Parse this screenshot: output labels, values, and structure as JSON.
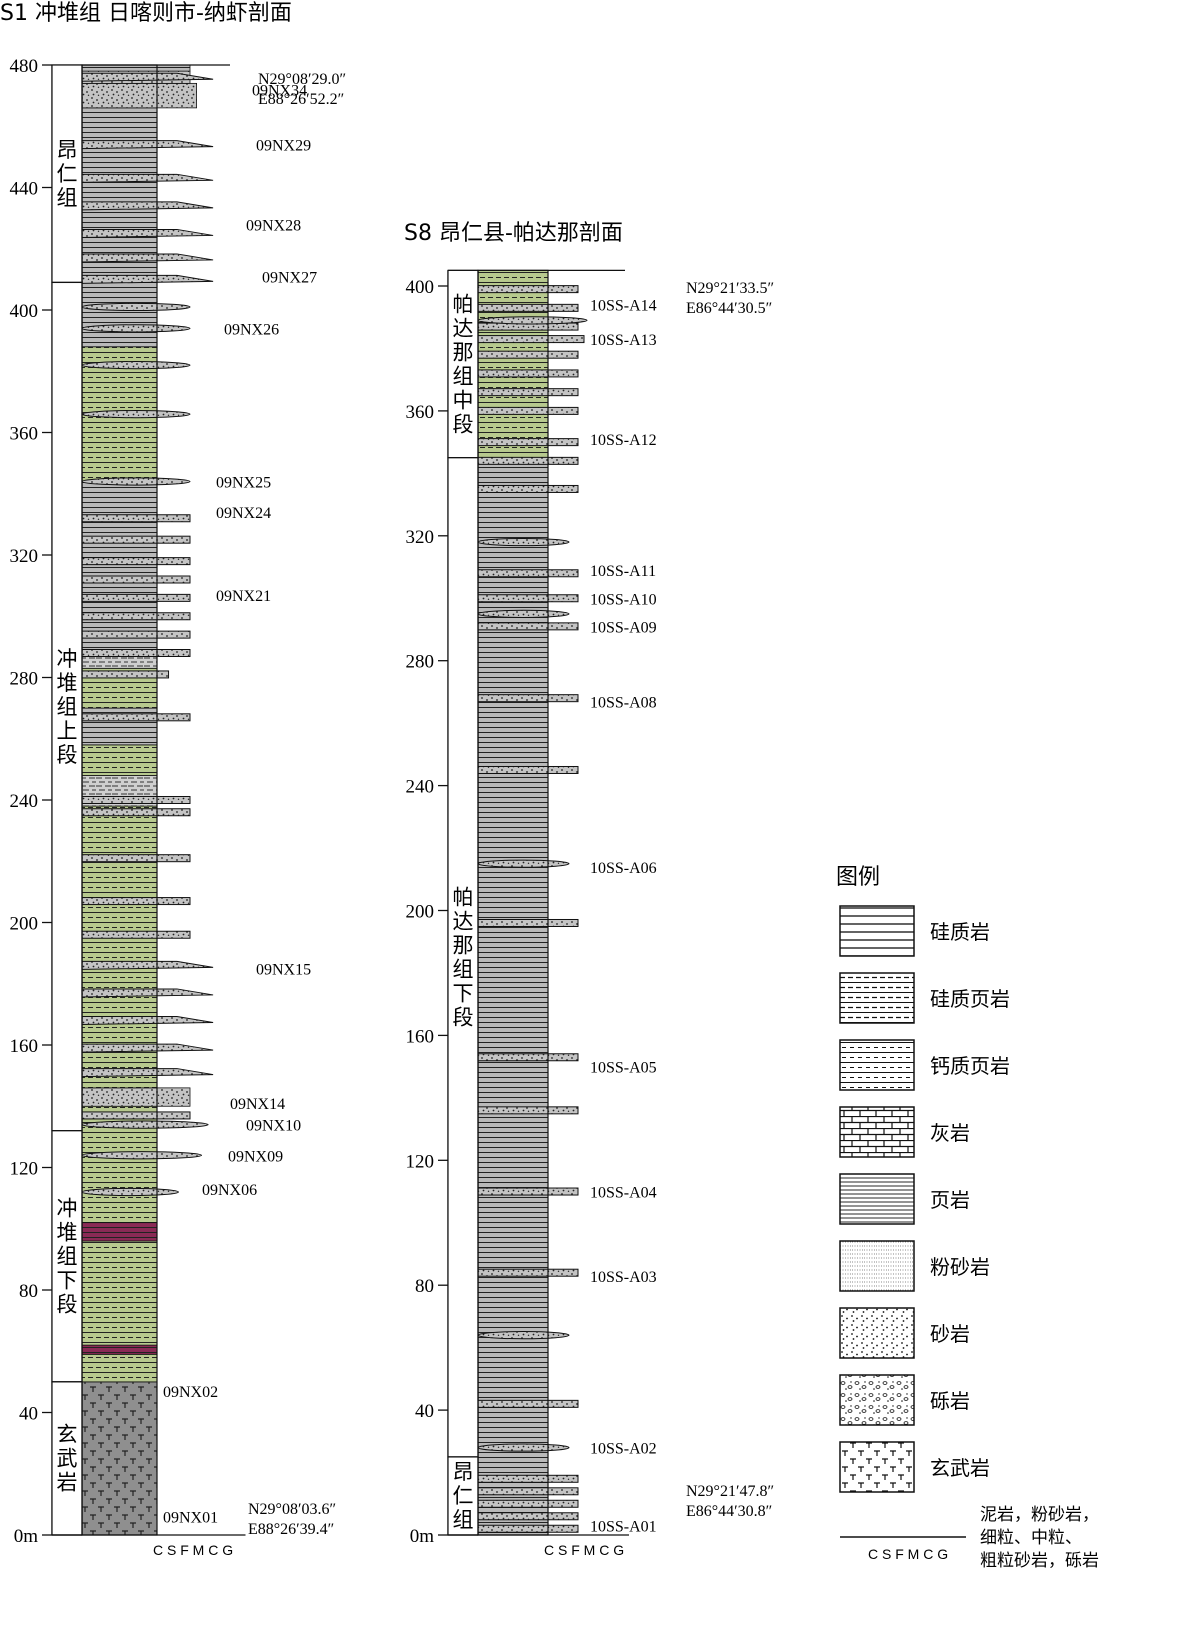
{
  "colors": {
    "shale": "#b9b9b9",
    "siliceous_shale": "#b7c98e",
    "calcareous_shale": "#cfcfcf",
    "sandstone": "#c4c4c4",
    "basalt": "#8f8f8f",
    "red_band": "#8a2a55",
    "line": "#111111"
  },
  "columns": [
    {
      "id": "S1",
      "title": "S1 冲堆组 日喀则市-纳虾剖面",
      "ticks": [
        "0m",
        "40",
        "80",
        "120",
        "160",
        "200",
        "240",
        "280",
        "320",
        "360",
        "400",
        "440",
        "480"
      ],
      "tick_values": [
        0,
        40,
        80,
        120,
        160,
        200,
        240,
        280,
        320,
        360,
        400,
        440,
        480
      ],
      "top_value": 480,
      "grain_label": "C S F M C G",
      "formations": [
        {
          "label": "昂仁组",
          "from": 409,
          "to": 480
        },
        {
          "label": "冲堆组上段",
          "from": 132,
          "to": 409
        },
        {
          "label": "冲堆组下段",
          "from": 50,
          "to": 132
        },
        {
          "label": "玄武岩",
          "from": 0,
          "to": 50
        }
      ],
      "units": [
        {
          "from": 0,
          "to": 50,
          "lith": "basalt",
          "grain": 0
        },
        {
          "from": 50,
          "to": 59,
          "lith": "siliceous_shale",
          "grain": 0
        },
        {
          "from": 59,
          "to": 62,
          "lith": "red_band",
          "grain": 0
        },
        {
          "from": 62,
          "to": 96,
          "lith": "siliceous_shale",
          "grain": 0
        },
        {
          "from": 96,
          "to": 102,
          "lith": "red_band",
          "grain": 0
        },
        {
          "from": 102,
          "to": 140,
          "lith": "siliceous_shale",
          "grain": 0
        },
        {
          "from": 140,
          "to": 146,
          "lith": "sandstone",
          "grain": 2
        },
        {
          "from": 146,
          "to": 238,
          "lith": "siliceous_shale",
          "grain": 0
        },
        {
          "from": 238,
          "to": 248,
          "lith": "calcareous_shale",
          "grain": 0
        },
        {
          "from": 248,
          "to": 258,
          "lith": "siliceous_shale",
          "grain": 0
        },
        {
          "from": 258,
          "to": 270,
          "lith": "shale",
          "grain": 0
        },
        {
          "from": 270,
          "to": 283,
          "lith": "siliceous_shale",
          "grain": 0
        },
        {
          "from": 283,
          "to": 288,
          "lith": "calcareous_shale",
          "grain": 0
        },
        {
          "from": 288,
          "to": 344,
          "lith": "shale",
          "grain": 0
        },
        {
          "from": 344,
          "to": 388,
          "lith": "siliceous_shale",
          "grain": 0
        },
        {
          "from": 388,
          "to": 466,
          "lith": "shale",
          "grain": 0
        },
        {
          "from": 466,
          "to": 474,
          "lith": "sandstone",
          "grain": 2.4
        },
        {
          "from": 474,
          "to": 478,
          "lith": "sandstone",
          "grain": 2
        },
        {
          "from": 478,
          "to": 480,
          "lith": "shale",
          "grain": 2
        }
      ],
      "beds": [
        {
          "at": 137,
          "type": "bar",
          "grain": 2
        },
        {
          "at": 134,
          "type": "lens",
          "grain": 3.1
        },
        {
          "at": 124,
          "type": "lens",
          "grain": 2.7
        },
        {
          "at": 112,
          "type": "lens",
          "grain": 1.3
        },
        {
          "at": 151,
          "type": "wedge",
          "grain": 3.4
        },
        {
          "at": 159,
          "type": "wedge",
          "grain": 3.4
        },
        {
          "at": 168,
          "type": "wedge",
          "grain": 3.4
        },
        {
          "at": 177,
          "type": "wedge",
          "grain": 3.4
        },
        {
          "at": 186,
          "type": "wedge",
          "grain": 3.4
        },
        {
          "at": 196,
          "type": "bar",
          "grain": 2
        },
        {
          "at": 207,
          "type": "bar",
          "grain": 2
        },
        {
          "at": 221,
          "type": "bar",
          "grain": 2
        },
        {
          "at": 236,
          "type": "bar",
          "grain": 2
        },
        {
          "at": 240,
          "type": "bar",
          "grain": 2
        },
        {
          "at": 267,
          "type": "bar",
          "grain": 2
        },
        {
          "at": 281,
          "type": "bar",
          "grain": 0.7
        },
        {
          "at": 288,
          "type": "bar",
          "grain": 2
        },
        {
          "at": 294,
          "type": "bar",
          "grain": 2
        },
        {
          "at": 300,
          "type": "bar",
          "grain": 2
        },
        {
          "at": 306,
          "type": "bar",
          "grain": 2
        },
        {
          "at": 312,
          "type": "bar",
          "grain": 2
        },
        {
          "at": 318,
          "type": "bar",
          "grain": 2
        },
        {
          "at": 325,
          "type": "bar",
          "grain": 2
        },
        {
          "at": 332,
          "type": "bar",
          "grain": 2
        },
        {
          "at": 344,
          "type": "lens",
          "grain": 2
        },
        {
          "at": 366,
          "type": "lens",
          "grain": 2
        },
        {
          "at": 382,
          "type": "lens",
          "grain": 2
        },
        {
          "at": 394,
          "type": "lens",
          "grain": 2
        },
        {
          "at": 401,
          "type": "lens",
          "grain": 2
        },
        {
          "at": 410,
          "type": "wedge",
          "grain": 3.4
        },
        {
          "at": 417,
          "type": "wedge",
          "grain": 3.4
        },
        {
          "at": 425,
          "type": "wedge",
          "grain": 3.4
        },
        {
          "at": 434,
          "type": "wedge",
          "grain": 3.4
        },
        {
          "at": 443,
          "type": "wedge",
          "grain": 3.4
        },
        {
          "at": 454,
          "type": "wedge",
          "grain": 3.4
        },
        {
          "at": 476,
          "type": "wedge",
          "grain": 3.4
        }
      ],
      "samples": [
        {
          "name": "09NX34",
          "at": 472
        },
        {
          "name": "09NX29",
          "at": 454
        },
        {
          "name": "09NX28",
          "at": 428
        },
        {
          "name": "09NX27",
          "at": 411
        },
        {
          "name": "09NX26",
          "at": 394
        },
        {
          "name": "09NX25",
          "at": 344
        },
        {
          "name": "09NX24",
          "at": 334
        },
        {
          "name": "09NX21",
          "at": 307
        },
        {
          "name": "09NX15",
          "at": 185
        },
        {
          "name": "09NX14",
          "at": 141
        },
        {
          "name": "09NX10",
          "at": 134
        },
        {
          "name": "09NX09",
          "at": 124
        },
        {
          "name": "09NX06",
          "at": 113
        },
        {
          "name": "09NX02",
          "at": 47
        },
        {
          "name": "09NX01",
          "at": 6
        }
      ],
      "coords_top": [
        "N29°08′29.0″",
        "E88°26′52.2″"
      ],
      "coords_bottom": [
        "N29°08′03.6″",
        "E88°26′39.4″"
      ]
    },
    {
      "id": "S8",
      "title": "S8 昂仁县-帕达那剖面",
      "ticks": [
        "0m",
        "40",
        "80",
        "120",
        "160",
        "200",
        "240",
        "280",
        "320",
        "360",
        "400"
      ],
      "tick_values": [
        0,
        40,
        80,
        120,
        160,
        200,
        240,
        280,
        320,
        360,
        400
      ],
      "top_value": 405,
      "grain_label": "C S F M C G",
      "formations": [
        {
          "label": "帕达那组中段",
          "from": 345,
          "to": 405
        },
        {
          "label": "帕达那组下段",
          "from": 25,
          "to": 345
        },
        {
          "label": "昂仁组",
          "from": 0,
          "to": 25
        }
      ],
      "units": [
        {
          "from": 0,
          "to": 345,
          "lith": "shale",
          "grain": 0
        },
        {
          "from": 345,
          "to": 405,
          "lith": "siliceous_shale",
          "grain": 0
        }
      ],
      "beds": [
        {
          "at": 2,
          "type": "bar",
          "grain": 2
        },
        {
          "at": 6,
          "type": "bar",
          "grain": 2
        },
        {
          "at": 10,
          "type": "bar",
          "grain": 2
        },
        {
          "at": 14,
          "type": "bar",
          "grain": 2
        },
        {
          "at": 18,
          "type": "bar",
          "grain": 2
        },
        {
          "at": 28,
          "type": "lens",
          "grain": 1.4
        },
        {
          "at": 42,
          "type": "bar",
          "grain": 2
        },
        {
          "at": 64,
          "type": "lens",
          "grain": 1.4
        },
        {
          "at": 84,
          "type": "bar",
          "grain": 2
        },
        {
          "at": 110,
          "type": "bar",
          "grain": 2
        },
        {
          "at": 136,
          "type": "bar",
          "grain": 2
        },
        {
          "at": 153,
          "type": "bar",
          "grain": 2
        },
        {
          "at": 196,
          "type": "bar",
          "grain": 2
        },
        {
          "at": 215,
          "type": "lens",
          "grain": 1.4
        },
        {
          "at": 245,
          "type": "bar",
          "grain": 2
        },
        {
          "at": 268,
          "type": "bar",
          "grain": 2
        },
        {
          "at": 291,
          "type": "bar",
          "grain": 2
        },
        {
          "at": 295,
          "type": "lens",
          "grain": 1.4
        },
        {
          "at": 300,
          "type": "bar",
          "grain": 2
        },
        {
          "at": 308,
          "type": "bar",
          "grain": 2
        },
        {
          "at": 318,
          "type": "lens",
          "grain": 1.4
        },
        {
          "at": 335,
          "type": "bar",
          "grain": 2
        },
        {
          "at": 344,
          "type": "bar",
          "grain": 2
        },
        {
          "at": 350,
          "type": "bar",
          "grain": 2
        },
        {
          "at": 360,
          "type": "bar",
          "grain": 2
        },
        {
          "at": 366,
          "type": "bar",
          "grain": 2
        },
        {
          "at": 372,
          "type": "bar",
          "grain": 2
        },
        {
          "at": 378,
          "type": "bar",
          "grain": 2
        },
        {
          "at": 383,
          "type": "bar",
          "grain": 2.4
        },
        {
          "at": 387,
          "type": "bar",
          "grain": 2
        },
        {
          "at": 389,
          "type": "lens",
          "grain": 2.6
        },
        {
          "at": 393,
          "type": "bar",
          "grain": 2
        },
        {
          "at": 399,
          "type": "bar",
          "grain": 2
        }
      ],
      "samples": [
        {
          "name": "10SS-A14",
          "at": 394
        },
        {
          "name": "10SS-A13",
          "at": 383
        },
        {
          "name": "10SS-A12",
          "at": 351
        },
        {
          "name": "10SS-A11",
          "at": 309
        },
        {
          "name": "10SS-A10",
          "at": 300
        },
        {
          "name": "10SS-A09",
          "at": 291
        },
        {
          "name": "10SS-A08",
          "at": 267
        },
        {
          "name": "10SS-A06",
          "at": 214
        },
        {
          "name": "10SS-A05",
          "at": 150
        },
        {
          "name": "10SS-A04",
          "at": 110
        },
        {
          "name": "10SS-A03",
          "at": 83
        },
        {
          "name": "10SS-A02",
          "at": 28
        },
        {
          "name": "10SS-A01",
          "at": 3
        }
      ],
      "coords_top": [
        "N29°21′33.5″",
        "E86°44′30.5″"
      ],
      "coords_bottom": [
        "N29°21′47.8″",
        "E86°44′30.8″"
      ]
    }
  ],
  "legend": {
    "title": "图例",
    "items": [
      {
        "label": "硅质岩",
        "pattern": "siliceous_rock"
      },
      {
        "label": "硅质页岩",
        "pattern": "siliceous_shale"
      },
      {
        "label": "钙质页岩",
        "pattern": "calcareous_shale"
      },
      {
        "label": "灰岩",
        "pattern": "limestone"
      },
      {
        "label": "页岩",
        "pattern": "shale"
      },
      {
        "label": "粉砂岩",
        "pattern": "siltstone"
      },
      {
        "label": "砂岩",
        "pattern": "sandstone"
      },
      {
        "label": "砾岩",
        "pattern": "conglomerate"
      },
      {
        "label": "玄武岩",
        "pattern": "basalt"
      }
    ],
    "grain_scale_label": "C S F M C G",
    "grain_note": [
      "泥岩，粉砂岩，",
      "细粒、中粒、",
      "粗粒砂岩，砾岩"
    ]
  }
}
